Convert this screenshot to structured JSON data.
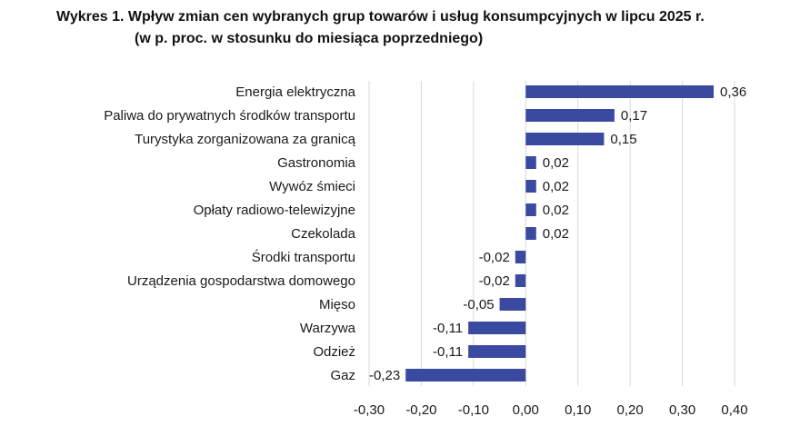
{
  "chart_data": {
    "type": "bar",
    "orientation": "horizontal",
    "title": "Wykres 1. Wpływ zmian cen wybranych grup towarów i usług konsumpcyjnych w lipcu 2025 r.",
    "subtitle": "(w p. proc. w stosunku do miesiąca poprzedniego)",
    "categories": [
      "Energia elektryczna",
      "Paliwa do prywatnych środków transportu",
      "Turystyka zorganizowana za granicą",
      "Gastronomia",
      "Wywóz śmieci",
      "Opłaty radiowo-telewizyjne",
      "Czekolada",
      "Środki transportu",
      "Urządzenia gospodarstwa domowego",
      "Mięso",
      "Warzywa",
      "Odzież",
      "Gaz"
    ],
    "values": [
      0.36,
      0.17,
      0.15,
      0.02,
      0.02,
      0.02,
      0.02,
      -0.02,
      -0.02,
      -0.05,
      -0.11,
      -0.11,
      -0.23
    ],
    "value_labels": [
      "0,36",
      "0,17",
      "0,15",
      "0,02",
      "0,02",
      "0,02",
      "0,02",
      "-0,02",
      "-0,02",
      "-0,05",
      "-0,11",
      "-0,11",
      "-0,23"
    ],
    "xlim": [
      -0.3,
      0.4
    ],
    "x_ticks": [
      -0.3,
      -0.2,
      -0.1,
      0.0,
      0.1,
      0.2,
      0.3,
      0.4
    ],
    "x_tick_labels": [
      "-0,30",
      "-0,20",
      "-0,10",
      "0,00",
      "0,10",
      "0,20",
      "0,30",
      "0,40"
    ],
    "grid": true,
    "legend": "none",
    "xlabel": "",
    "ylabel": "",
    "colors": {
      "bar": "#3a4aa0",
      "grid": "#d9d9d9",
      "text": "#1a1a1a"
    }
  }
}
